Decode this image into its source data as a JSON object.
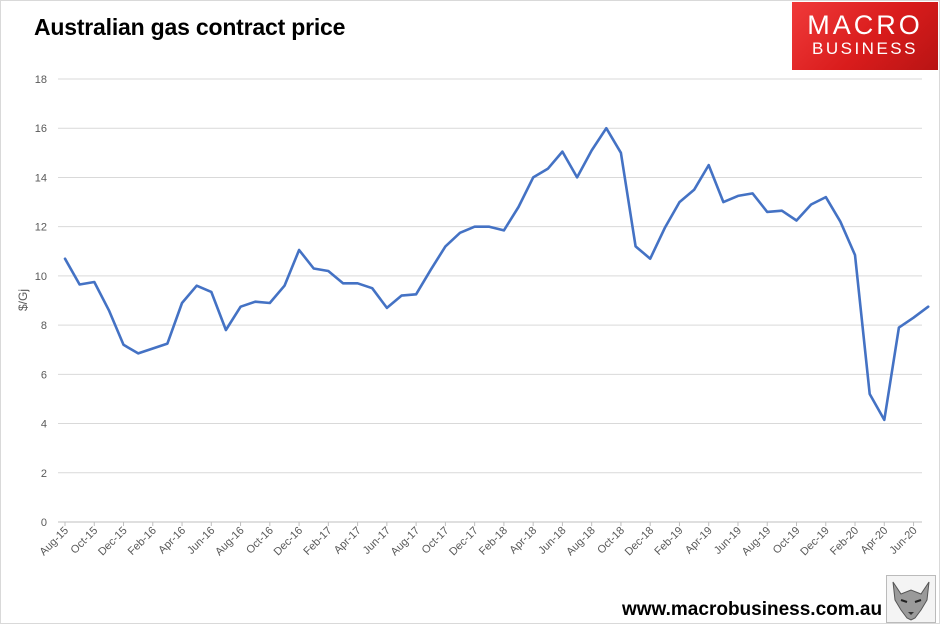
{
  "header": {
    "title": "Australian gas contract price"
  },
  "logo": {
    "line1": "MACRO",
    "line2": "BUSINESS"
  },
  "footer": {
    "url": "www.macrobusiness.com.au"
  },
  "colors": {
    "line": "#4472c4",
    "grid": "#d9d9d9",
    "brand_red": "#e02424"
  },
  "chart_data": {
    "type": "line",
    "title": "Australian gas contract price",
    "xlabel": "",
    "ylabel": "$/Gj",
    "ylim": [
      0,
      18
    ],
    "yticks": [
      0,
      2,
      4,
      6,
      8,
      10,
      12,
      14,
      16,
      18
    ],
    "grid": true,
    "x_tick_labels": [
      "Aug-15",
      "Oct-15",
      "Dec-15",
      "Feb-16",
      "Apr-16",
      "Jun-16",
      "Aug-16",
      "Oct-16",
      "Dec-16",
      "Feb-17",
      "Apr-17",
      "Jun-17",
      "Aug-17",
      "Oct-17",
      "Dec-17",
      "Feb-18",
      "Apr-18",
      "Jun-18",
      "Aug-18",
      "Oct-18",
      "Dec-18",
      "Feb-19",
      "Apr-19",
      "Jun-19",
      "Aug-19",
      "Oct-19",
      "Dec-19",
      "Feb-20",
      "Apr-20",
      "Jun-20"
    ],
    "x": [
      "Aug-15",
      "Sep-15",
      "Oct-15",
      "Nov-15",
      "Dec-15",
      "Jan-16",
      "Feb-16",
      "Mar-16",
      "Apr-16",
      "May-16",
      "Jun-16",
      "Jul-16",
      "Aug-16",
      "Sep-16",
      "Oct-16",
      "Nov-16",
      "Dec-16",
      "Jan-17",
      "Feb-17",
      "Mar-17",
      "Apr-17",
      "May-17",
      "Jun-17",
      "Jul-17",
      "Aug-17",
      "Sep-17",
      "Oct-17",
      "Nov-17",
      "Dec-17",
      "Jan-18",
      "Feb-18",
      "Mar-18",
      "Apr-18",
      "May-18",
      "Jun-18",
      "Jul-18",
      "Aug-18",
      "Sep-18",
      "Oct-18",
      "Nov-18",
      "Dec-18",
      "Jan-19",
      "Feb-19",
      "Mar-19",
      "Apr-19",
      "May-19",
      "Jun-19",
      "Jul-19",
      "Aug-19",
      "Sep-19",
      "Oct-19",
      "Nov-19",
      "Dec-19",
      "Jan-20",
      "Feb-20",
      "Mar-20",
      "Apr-20",
      "May-20",
      "Jun-20",
      "Jul-20"
    ],
    "series": [
      {
        "values": [
          10.7,
          9.65,
          9.75,
          8.6,
          7.2,
          6.85,
          7.05,
          7.25,
          8.9,
          9.6,
          9.35,
          7.8,
          8.75,
          8.95,
          8.9,
          9.6,
          11.05,
          10.3,
          10.2,
          9.7,
          9.7,
          9.5,
          8.7,
          9.2,
          9.25,
          10.25,
          11.2,
          11.75,
          12.0,
          12.0,
          11.85,
          12.8,
          14.0,
          14.35,
          15.05,
          14.0,
          15.1,
          16.0,
          15.0,
          11.2,
          10.7,
          11.95,
          13.0,
          13.5,
          14.5,
          13.0,
          13.25,
          13.35,
          12.6,
          12.65,
          12.25,
          12.9,
          13.2,
          12.2,
          10.85,
          5.2,
          4.15,
          7.9,
          8.3,
          8.75
        ]
      }
    ]
  }
}
